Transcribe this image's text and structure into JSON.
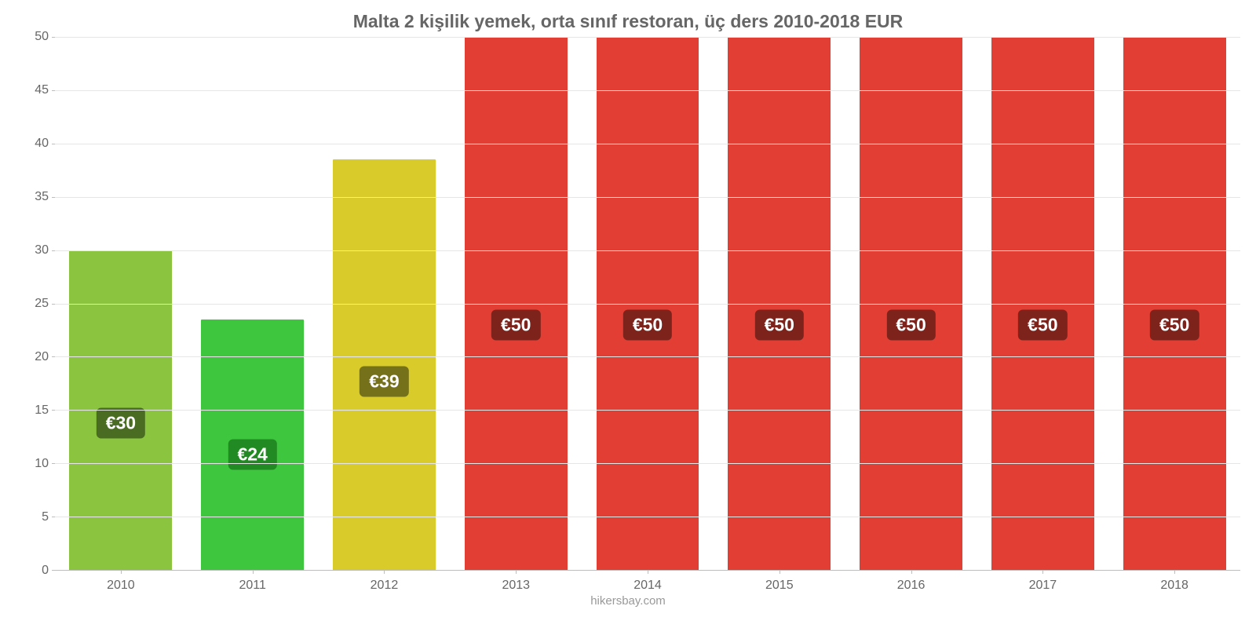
{
  "chart": {
    "type": "bar",
    "title": "Malta 2 kişilik yemek, orta sınıf restoran, üç ders 2010-2018 EUR",
    "title_color": "#666666",
    "title_fontsize": 23,
    "source": "hikersbay.com",
    "source_color": "#999999",
    "background_color": "#ffffff",
    "grid_color": "#e6e6e6",
    "axis_line_color": "#bdbdbd",
    "axis_text_color": "#666666",
    "axis_fontsize": 16,
    "ylim": [
      0,
      50
    ],
    "y_ticks": [
      0,
      5,
      10,
      15,
      20,
      25,
      30,
      35,
      40,
      45,
      50
    ],
    "categories": [
      "2010",
      "2011",
      "2012",
      "2013",
      "2014",
      "2015",
      "2016",
      "2017",
      "2018"
    ],
    "values": [
      30,
      23.5,
      38.5,
      50,
      50,
      50,
      50,
      50,
      50
    ],
    "value_labels": [
      "€30",
      "€24",
      "€39",
      "€50",
      "€50",
      "€50",
      "€50",
      "€50",
      "€50"
    ],
    "bar_colors": [
      "#8bc53f",
      "#3ec63e",
      "#d8cb2a",
      "#e23e33",
      "#e23e33",
      "#e23e33",
      "#e23e33",
      "#e23e33",
      "#e23e33"
    ],
    "label_bg_colors": [
      "#4a6b22",
      "#228a22",
      "#75701a",
      "#7d231c",
      "#7d231c",
      "#7d231c",
      "#7d231c",
      "#7d231c",
      "#7d231c"
    ],
    "bar_width_pct": 78,
    "label_fontsize": 23,
    "label_text_color": "#ffffff"
  }
}
